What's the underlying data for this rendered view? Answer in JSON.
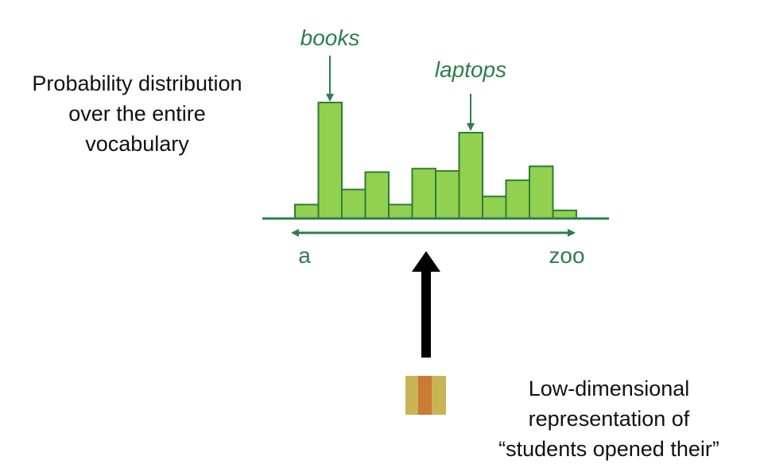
{
  "colors": {
    "bar_fill": "#92d050",
    "bar_stroke": "#2e7d32",
    "green_text": "#2e7d4f",
    "arrow_black": "#000000",
    "vector_outer": "#c8b454",
    "vector_inner": "#c97a35"
  },
  "distribution": {
    "caption_lines": [
      "Probability distribution",
      "over the entire",
      "vocabulary"
    ],
    "bar_values": [
      0.12,
      1.0,
      0.25,
      0.4,
      0.12,
      0.43,
      0.41,
      0.74,
      0.19,
      0.33,
      0.45,
      0.07
    ],
    "start_label": "a",
    "end_label": "zoo",
    "callouts": [
      {
        "text": "books",
        "bar_index": 1
      },
      {
        "text": "laptops",
        "bar_index": 7
      }
    ]
  },
  "representation": {
    "caption_lines": [
      "Low-dimensional",
      "representation of",
      "“students opened their”"
    ]
  }
}
